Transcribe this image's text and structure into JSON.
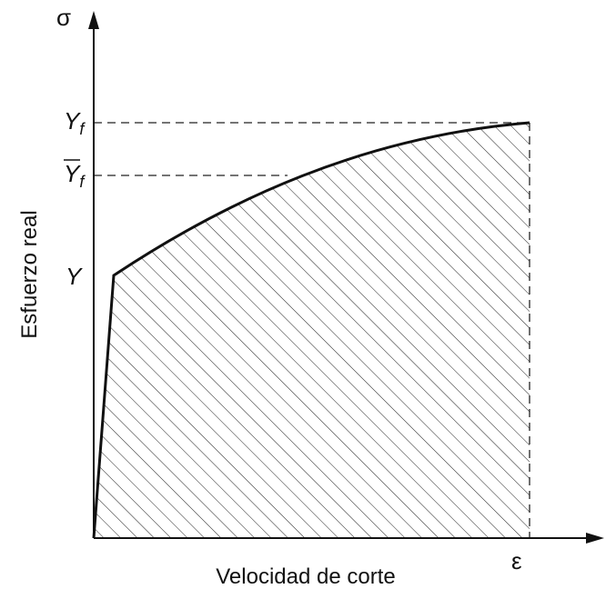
{
  "axes": {
    "y_symbol": "σ",
    "x_symbol": "ε",
    "y_label": "Esfuerzo real",
    "x_label": "Velocidad de corte"
  },
  "levels": {
    "final": {
      "main": "Y",
      "sub": "f"
    },
    "mean": {
      "main": "Y",
      "sub": "f"
    },
    "yield": "Y"
  }
}
